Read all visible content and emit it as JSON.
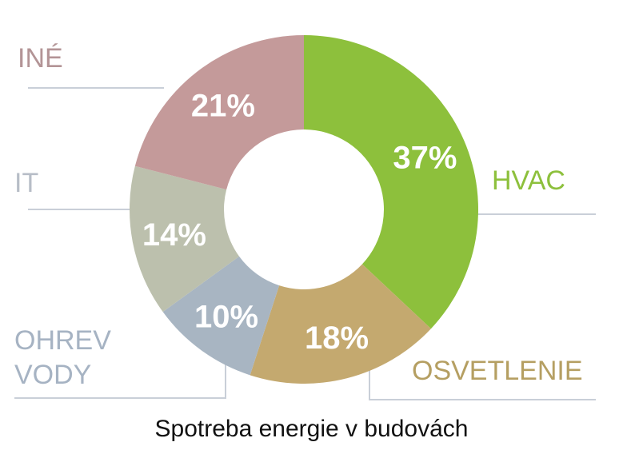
{
  "chart_data": {
    "type": "pie",
    "subtype": "donut",
    "title": "Spotreba energie v budovách",
    "slices": [
      {
        "category": "HVAC",
        "value": 37,
        "label": "37%",
        "color": "#8dc03c",
        "label_color": "#8dc03c"
      },
      {
        "category": "OSVETLENIE",
        "value": 18,
        "label": "18%",
        "color": "#c4a96f",
        "label_color": "#b59f62"
      },
      {
        "category": "OHREV VODY",
        "value": 10,
        "label": "10%",
        "color": "#a8b5c2",
        "label_color": "#a6b3c3"
      },
      {
        "category": "IT",
        "value": 14,
        "label": "14%",
        "color": "#bcc0ad",
        "label_color": "#b7bdc7"
      },
      {
        "category": "INÉ",
        "value": 21,
        "label": "21%",
        "color": "#c49a9a",
        "label_color": "#b39496"
      }
    ],
    "category_labels": {
      "hvac": "HVAC",
      "osvetlenie": "OSVETLENIE",
      "ohrev_vody_line1": "OHREV",
      "ohrev_vody_line2": "VODY",
      "it": "IT",
      "ine": "INÉ"
    },
    "leader_line_color": "#c9cfd8"
  }
}
